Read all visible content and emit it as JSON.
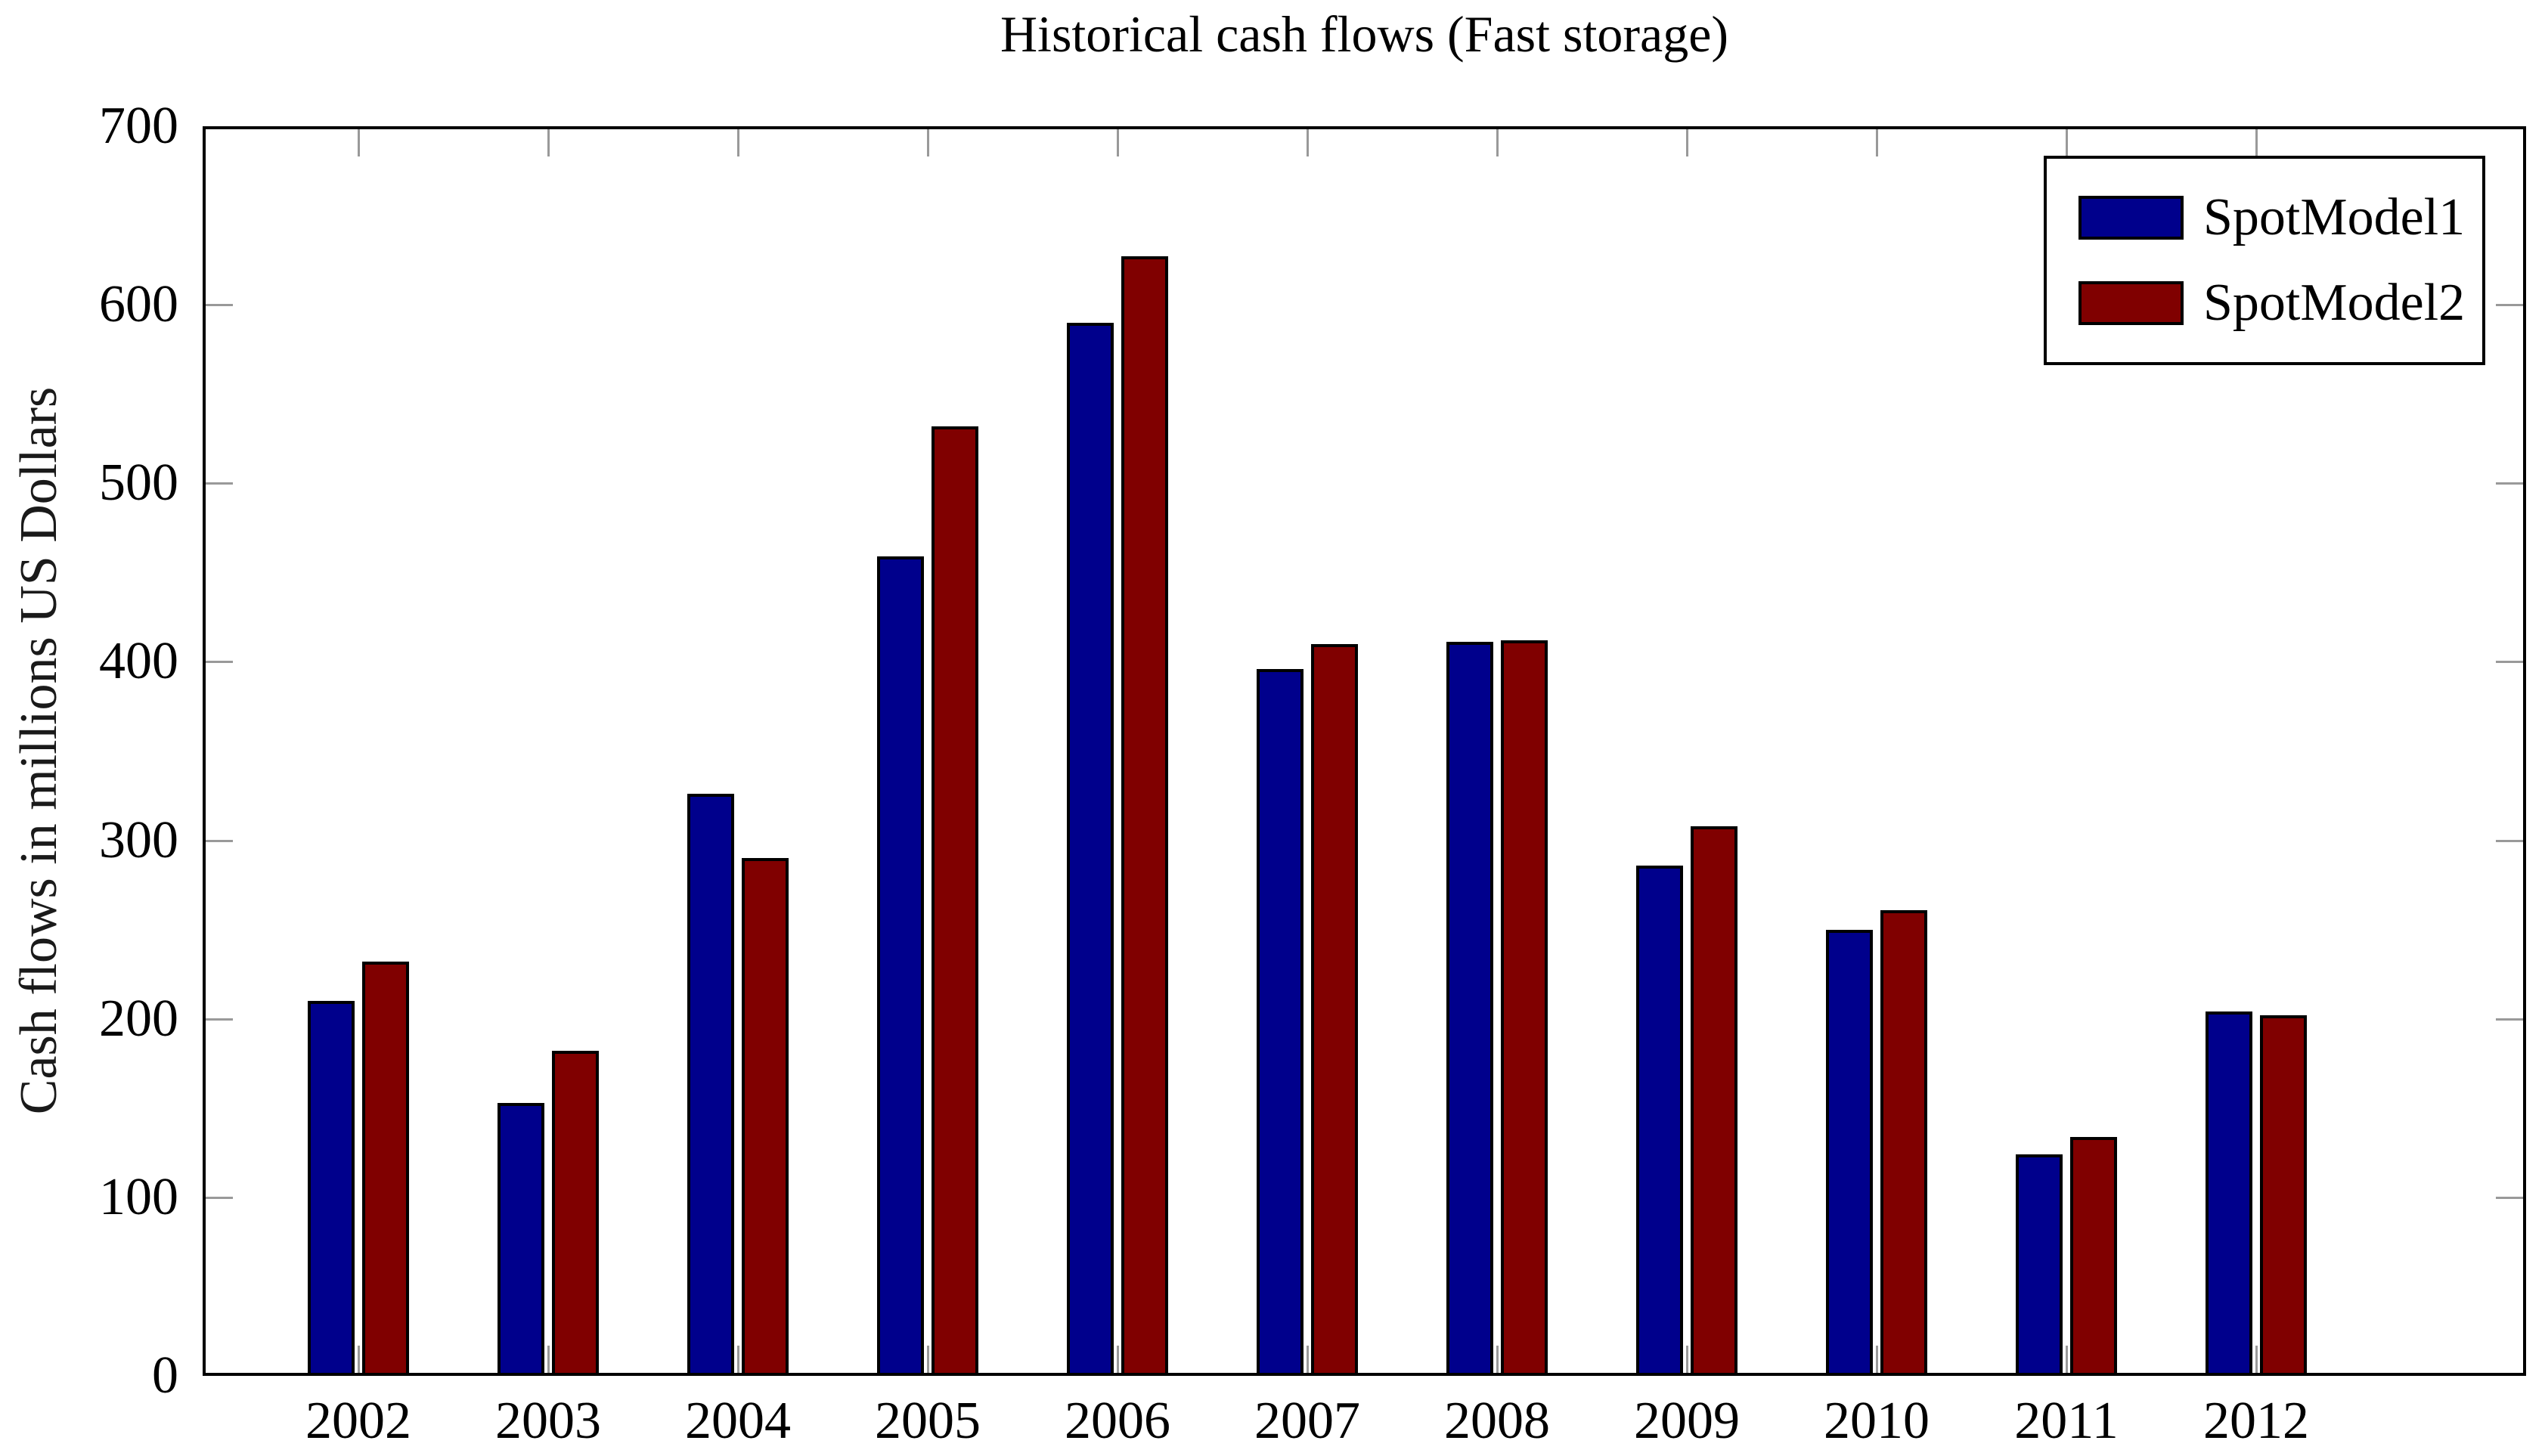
{
  "page": {
    "background": "#FFFFFF"
  },
  "chart_data": {
    "type": "bar",
    "title": "Historical cash flows (Fast storage)",
    "xlabel": "",
    "ylabel": "Cash flows in millions US Dollars",
    "categories": [
      "2002",
      "2003",
      "2004",
      "2005",
      "2006",
      "2007",
      "2008",
      "2009",
      "2010",
      "2011",
      "2012"
    ],
    "series": [
      {
        "name": "SpotModel1",
        "color": "#00008C",
        "values": [
          210,
          153,
          326,
          459,
          590,
          396,
          411,
          286,
          250,
          124,
          204
        ]
      },
      {
        "name": "SpotModel2",
        "color": "#800000",
        "values": [
          232,
          182,
          290,
          532,
          627,
          410,
          412,
          308,
          261,
          134,
          202
        ]
      }
    ],
    "ylim": [
      0,
      700
    ],
    "yticks": [
      0,
      100,
      200,
      300,
      400,
      500,
      600,
      700
    ],
    "grid": false,
    "legend_position": "top-right",
    "axis_color": "#000000",
    "tick_color": "#999999",
    "bar_outline_color": "#000000"
  }
}
